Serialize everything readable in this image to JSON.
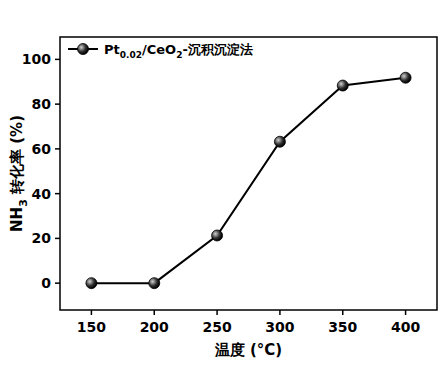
{
  "chart_data": {
    "type": "line",
    "x_label": "温度 (°C)",
    "y_label": "NH3 转化率 (%)",
    "x": [
      150,
      200,
      250,
      300,
      350,
      400
    ],
    "series": [
      {
        "name": "Pt0.02/CeO2-沉积沉淀法",
        "color": "#000000",
        "marker": "circle",
        "line_style": "solid",
        "values": [
          0,
          0,
          21.3,
          63.2,
          88.3,
          91.8
        ]
      }
    ],
    "xlim": [
      125,
      425
    ],
    "xticks": [
      150,
      200,
      250,
      300,
      350,
      400
    ],
    "ylim": [
      -12,
      110
    ],
    "yticks": [
      0,
      20,
      40,
      60,
      80,
      100
    ],
    "legend": "upper-left",
    "grid": false
  }
}
